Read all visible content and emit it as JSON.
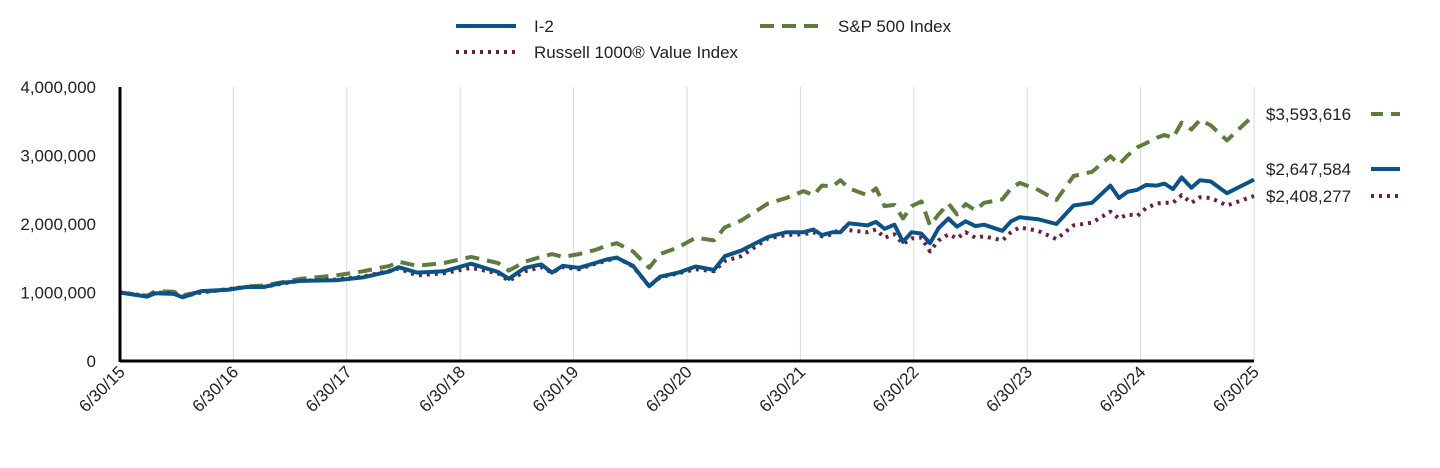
{
  "chart_data": {
    "type": "line",
    "title": "",
    "xlabel": "",
    "ylabel": "",
    "ylim": [
      0,
      4000000
    ],
    "y_ticks": [
      0,
      1000000,
      2000000,
      3000000,
      4000000
    ],
    "y_tick_labels": [
      "0",
      "1,000,000",
      "2,000,000",
      "3,000,000",
      "4,000,000"
    ],
    "x_tick_labels": [
      "6/30/15",
      "6/30/16",
      "6/30/17",
      "6/30/18",
      "6/30/19",
      "6/30/20",
      "6/30/21",
      "6/30/22",
      "6/30/23",
      "6/30/24",
      "6/30/25"
    ],
    "x_range_years": [
      0,
      10
    ],
    "grid": "vertical",
    "legend_position": "top",
    "series": [
      {
        "name": "I-2",
        "style": "solid",
        "color": "#0b5386",
        "end_label": "$2,647,584",
        "points": [
          [
            0,
            1000000
          ],
          [
            0.25,
            940000
          ],
          [
            0.33,
            990000
          ],
          [
            0.5,
            980000
          ],
          [
            0.58,
            930000
          ],
          [
            0.75,
            1020000
          ],
          [
            1.0,
            1040000
          ],
          [
            1.17,
            1080000
          ],
          [
            1.33,
            1080000
          ],
          [
            1.5,
            1140000
          ],
          [
            1.67,
            1170000
          ],
          [
            2.0,
            1180000
          ],
          [
            2.25,
            1220000
          ],
          [
            2.5,
            1310000
          ],
          [
            2.58,
            1370000
          ],
          [
            2.75,
            1290000
          ],
          [
            3.0,
            1310000
          ],
          [
            3.25,
            1420000
          ],
          [
            3.5,
            1300000
          ],
          [
            3.6,
            1200000
          ],
          [
            3.75,
            1360000
          ],
          [
            3.9,
            1410000
          ],
          [
            4.0,
            1290000
          ],
          [
            4.1,
            1390000
          ],
          [
            4.25,
            1360000
          ],
          [
            4.4,
            1430000
          ],
          [
            4.5,
            1480000
          ],
          [
            4.6,
            1510000
          ],
          [
            4.75,
            1390000
          ],
          [
            4.9,
            1090000
          ],
          [
            5.0,
            1230000
          ],
          [
            5.17,
            1290000
          ],
          [
            5.33,
            1380000
          ],
          [
            5.5,
            1330000
          ],
          [
            5.6,
            1530000
          ],
          [
            5.75,
            1610000
          ],
          [
            6.0,
            1810000
          ],
          [
            6.17,
            1880000
          ],
          [
            6.33,
            1880000
          ],
          [
            6.42,
            1920000
          ],
          [
            6.5,
            1840000
          ],
          [
            6.6,
            1880000
          ],
          [
            6.67,
            1880000
          ],
          [
            6.75,
            2010000
          ],
          [
            6.92,
            1980000
          ],
          [
            7.0,
            2030000
          ],
          [
            7.08,
            1930000
          ],
          [
            7.17,
            1990000
          ],
          [
            7.25,
            1740000
          ],
          [
            7.33,
            1880000
          ],
          [
            7.42,
            1860000
          ],
          [
            7.5,
            1720000
          ],
          [
            7.58,
            1940000
          ],
          [
            7.67,
            2080000
          ],
          [
            7.75,
            1960000
          ],
          [
            7.83,
            2040000
          ],
          [
            7.92,
            1970000
          ],
          [
            8.0,
            1990000
          ],
          [
            8.17,
            1900000
          ],
          [
            8.25,
            2040000
          ],
          [
            8.33,
            2100000
          ],
          [
            8.5,
            2070000
          ],
          [
            8.67,
            2000000
          ],
          [
            8.83,
            2270000
          ],
          [
            9.0,
            2310000
          ],
          [
            9.17,
            2560000
          ],
          [
            9.25,
            2380000
          ],
          [
            9.33,
            2470000
          ],
          [
            9.42,
            2500000
          ],
          [
            9.5,
            2570000
          ],
          [
            9.6,
            2560000
          ],
          [
            9.67,
            2590000
          ],
          [
            9.75,
            2510000
          ],
          [
            9.83,
            2680000
          ],
          [
            9.92,
            2530000
          ],
          [
            10.0,
            2640000
          ],
          [
            10.1,
            2620000
          ],
          [
            10.25,
            2450000
          ],
          [
            10.5,
            2647584
          ]
        ]
      },
      {
        "name": "S&P 500 Index",
        "style": "dashed",
        "color": "#5c7d3e",
        "end_label": "$3,593,616",
        "points": [
          [
            0,
            1000000
          ],
          [
            0.25,
            950000
          ],
          [
            0.33,
            1020000
          ],
          [
            0.5,
            1010000
          ],
          [
            0.58,
            960000
          ],
          [
            0.75,
            1010000
          ],
          [
            1.0,
            1040000
          ],
          [
            1.17,
            1090000
          ],
          [
            1.33,
            1100000
          ],
          [
            1.5,
            1150000
          ],
          [
            1.67,
            1200000
          ],
          [
            2.0,
            1250000
          ],
          [
            2.25,
            1310000
          ],
          [
            2.5,
            1390000
          ],
          [
            2.58,
            1450000
          ],
          [
            2.75,
            1390000
          ],
          [
            3.0,
            1430000
          ],
          [
            3.25,
            1520000
          ],
          [
            3.5,
            1430000
          ],
          [
            3.6,
            1320000
          ],
          [
            3.75,
            1450000
          ],
          [
            3.9,
            1520000
          ],
          [
            4.0,
            1560000
          ],
          [
            4.1,
            1520000
          ],
          [
            4.25,
            1560000
          ],
          [
            4.4,
            1620000
          ],
          [
            4.5,
            1680000
          ],
          [
            4.6,
            1720000
          ],
          [
            4.75,
            1600000
          ],
          [
            4.9,
            1360000
          ],
          [
            5.0,
            1560000
          ],
          [
            5.17,
            1660000
          ],
          [
            5.33,
            1800000
          ],
          [
            5.5,
            1760000
          ],
          [
            5.6,
            1950000
          ],
          [
            5.75,
            2050000
          ],
          [
            6.0,
            2300000
          ],
          [
            6.17,
            2380000
          ],
          [
            6.33,
            2480000
          ],
          [
            6.42,
            2420000
          ],
          [
            6.5,
            2560000
          ],
          [
            6.6,
            2550000
          ],
          [
            6.67,
            2640000
          ],
          [
            6.75,
            2520000
          ],
          [
            6.92,
            2420000
          ],
          [
            7.0,
            2520000
          ],
          [
            7.08,
            2260000
          ],
          [
            7.17,
            2280000
          ],
          [
            7.25,
            2080000
          ],
          [
            7.33,
            2260000
          ],
          [
            7.42,
            2330000
          ],
          [
            7.5,
            1980000
          ],
          [
            7.58,
            2140000
          ],
          [
            7.67,
            2300000
          ],
          [
            7.75,
            2140000
          ],
          [
            7.83,
            2290000
          ],
          [
            7.92,
            2200000
          ],
          [
            8.0,
            2310000
          ],
          [
            8.17,
            2360000
          ],
          [
            8.25,
            2520000
          ],
          [
            8.33,
            2600000
          ],
          [
            8.5,
            2500000
          ],
          [
            8.67,
            2350000
          ],
          [
            8.83,
            2700000
          ],
          [
            9.0,
            2760000
          ],
          [
            9.17,
            2990000
          ],
          [
            9.25,
            2870000
          ],
          [
            9.33,
            3000000
          ],
          [
            9.42,
            3120000
          ],
          [
            9.5,
            3180000
          ],
          [
            9.6,
            3260000
          ],
          [
            9.67,
            3300000
          ],
          [
            9.75,
            3260000
          ],
          [
            9.83,
            3480000
          ],
          [
            9.92,
            3380000
          ],
          [
            10.0,
            3520000
          ],
          [
            10.1,
            3440000
          ],
          [
            10.25,
            3220000
          ],
          [
            10.5,
            3593616
          ]
        ]
      },
      {
        "name": "Russell 1000® Value Index",
        "style": "dotted",
        "color": "#6b1f3f",
        "end_label": "$2,408,277",
        "points": [
          [
            0,
            1000000
          ],
          [
            0.25,
            950000
          ],
          [
            0.33,
            1000000
          ],
          [
            0.5,
            990000
          ],
          [
            0.58,
            940000
          ],
          [
            0.75,
            1000000
          ],
          [
            1.0,
            1050000
          ],
          [
            1.17,
            1080000
          ],
          [
            1.33,
            1080000
          ],
          [
            1.5,
            1130000
          ],
          [
            1.67,
            1170000
          ],
          [
            2.0,
            1190000
          ],
          [
            2.25,
            1230000
          ],
          [
            2.5,
            1320000
          ],
          [
            2.58,
            1350000
          ],
          [
            2.75,
            1250000
          ],
          [
            3.0,
            1280000
          ],
          [
            3.25,
            1360000
          ],
          [
            3.5,
            1280000
          ],
          [
            3.6,
            1170000
          ],
          [
            3.75,
            1310000
          ],
          [
            3.9,
            1370000
          ],
          [
            4.0,
            1290000
          ],
          [
            4.1,
            1370000
          ],
          [
            4.25,
            1340000
          ],
          [
            4.4,
            1420000
          ],
          [
            4.5,
            1460000
          ],
          [
            4.6,
            1510000
          ],
          [
            4.75,
            1380000
          ],
          [
            4.9,
            1090000
          ],
          [
            5.0,
            1220000
          ],
          [
            5.17,
            1280000
          ],
          [
            5.33,
            1340000
          ],
          [
            5.5,
            1310000
          ],
          [
            5.6,
            1460000
          ],
          [
            5.75,
            1530000
          ],
          [
            6.0,
            1790000
          ],
          [
            6.17,
            1840000
          ],
          [
            6.33,
            1850000
          ],
          [
            6.42,
            1880000
          ],
          [
            6.5,
            1820000
          ],
          [
            6.6,
            1850000
          ],
          [
            6.67,
            1940000
          ],
          [
            6.75,
            1910000
          ],
          [
            6.92,
            1880000
          ],
          [
            7.0,
            1920000
          ],
          [
            7.08,
            1800000
          ],
          [
            7.17,
            1850000
          ],
          [
            7.25,
            1710000
          ],
          [
            7.33,
            1790000
          ],
          [
            7.42,
            1800000
          ],
          [
            7.5,
            1600000
          ],
          [
            7.58,
            1760000
          ],
          [
            7.67,
            1850000
          ],
          [
            7.75,
            1790000
          ],
          [
            7.83,
            1880000
          ],
          [
            7.92,
            1800000
          ],
          [
            8.0,
            1820000
          ],
          [
            8.17,
            1760000
          ],
          [
            8.25,
            1880000
          ],
          [
            8.33,
            1950000
          ],
          [
            8.5,
            1900000
          ],
          [
            8.67,
            1780000
          ],
          [
            8.83,
            1980000
          ],
          [
            9.0,
            2020000
          ],
          [
            9.17,
            2180000
          ],
          [
            9.25,
            2080000
          ],
          [
            9.33,
            2140000
          ],
          [
            9.42,
            2120000
          ],
          [
            9.5,
            2230000
          ],
          [
            9.6,
            2300000
          ],
          [
            9.67,
            2310000
          ],
          [
            9.75,
            2310000
          ],
          [
            9.83,
            2420000
          ],
          [
            9.92,
            2310000
          ],
          [
            10.0,
            2390000
          ],
          [
            10.1,
            2380000
          ],
          [
            10.25,
            2270000
          ],
          [
            10.5,
            2408277
          ]
        ]
      }
    ],
    "legend": [
      {
        "name": "I-2",
        "style": "solid"
      },
      {
        "name": "S&P 500 Index",
        "style": "dashed"
      },
      {
        "name": "Russell 1000® Value Index",
        "style": "dotted"
      }
    ]
  }
}
